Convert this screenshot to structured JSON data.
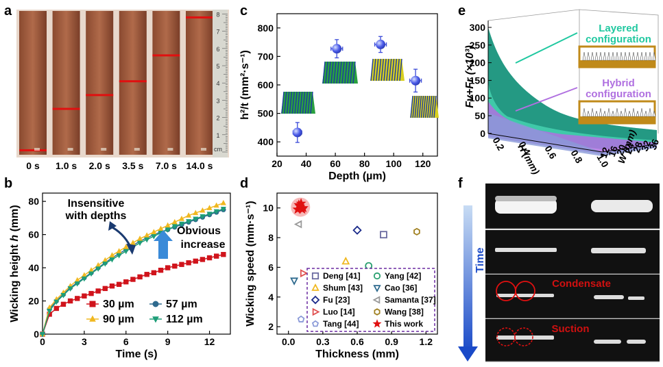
{
  "panel_labels": {
    "a": "a",
    "b": "b",
    "c": "c",
    "d": "d",
    "e": "e",
    "f": "f"
  },
  "panel_a": {
    "time_labels": [
      "0 s",
      "1.0 s",
      "2.0 s",
      "3.5 s",
      "7.0 s",
      "14.0 s"
    ],
    "ruler_marks": [
      "8",
      "7",
      "6",
      "5",
      "4",
      "3",
      "2",
      "1",
      "cm"
    ],
    "heights_cm": [
      0.1,
      2.5,
      3.3,
      4.1,
      5.6,
      7.8
    ]
  },
  "chart_data": [
    {
      "panel": "b",
      "type": "line",
      "xlabel": "Time (s)",
      "ylabel": "Wicking height h (mm)",
      "xlim": [
        0,
        13.5
      ],
      "ylim": [
        0,
        85
      ],
      "xticks": [
        "0",
        "3",
        "6",
        "9",
        "12"
      ],
      "yticks": [
        "0",
        "20",
        "40",
        "60",
        "80"
      ],
      "annotations": [
        "Insensitive with depths",
        "Obvious increase"
      ],
      "x": [
        0,
        0.5,
        1,
        1.5,
        2,
        2.5,
        3,
        3.5,
        4,
        4.5,
        5,
        5.5,
        6,
        6.5,
        7,
        7.5,
        8,
        8.5,
        9,
        9.5,
        10,
        10.5,
        11,
        11.5,
        12,
        12.5,
        13
      ],
      "series": [
        {
          "name": "30 µm",
          "color": "#d0141c",
          "marker": "square",
          "values": [
            0,
            12,
            15.5,
            18,
            20,
            21.5,
            23,
            24.5,
            26,
            27.5,
            29,
            30,
            31.5,
            33,
            34.5,
            36,
            37,
            38.5,
            40,
            41,
            42,
            43,
            44,
            45,
            46,
            47,
            48
          ]
        },
        {
          "name": "57 µm",
          "color": "#2e6a8e",
          "marker": "circle",
          "values": [
            0,
            15,
            20,
            24,
            28,
            31,
            34,
            37,
            40,
            43,
            46,
            48.5,
            51,
            53.5,
            56,
            58,
            60,
            61.5,
            63,
            64.5,
            66,
            67.5,
            69,
            70.5,
            72,
            73.5,
            75
          ]
        },
        {
          "name": "90 µm",
          "color": "#f0b820",
          "marker": "triangle",
          "values": [
            0,
            16,
            21,
            25,
            29,
            32.5,
            35.5,
            38.5,
            41.5,
            44.5,
            47.5,
            50,
            52.5,
            55,
            57.5,
            59.5,
            61.5,
            63.5,
            65.5,
            67.5,
            69.5,
            71.5,
            73,
            74.5,
            76,
            77.5,
            79
          ]
        },
        {
          "name": "112 µm",
          "color": "#1e9e78",
          "marker": "triangle-down",
          "values": [
            0,
            14,
            19.5,
            23.5,
            27.5,
            30.5,
            33.5,
            36.5,
            39.5,
            42.5,
            45,
            47.5,
            50,
            52.5,
            55,
            57,
            59,
            61,
            63,
            65,
            66.5,
            68,
            69.5,
            71,
            72.5,
            74,
            75.5
          ]
        }
      ]
    },
    {
      "panel": "c",
      "type": "scatter",
      "xlabel": "Depth (µm)",
      "ylabel": "h²/t (mm²·s⁻¹)",
      "xlim": [
        20,
        130
      ],
      "ylim": [
        350,
        850
      ],
      "xticks": [
        "20",
        "40",
        "60",
        "80",
        "100",
        "120"
      ],
      "yticks": [
        "400",
        "500",
        "600",
        "700",
        "800"
      ],
      "points": [
        {
          "x": 34,
          "y": 433,
          "xerr": 3,
          "yerr": 35
        },
        {
          "x": 61,
          "y": 727,
          "xerr": 4,
          "yerr": 32
        },
        {
          "x": 91,
          "y": 742,
          "xerr": 4,
          "yerr": 28
        },
        {
          "x": 115,
          "y": 615,
          "xerr": 4,
          "yerr": 40
        }
      ]
    },
    {
      "panel": "d",
      "type": "scatter",
      "xlabel": "Thickness (mm)",
      "ylabel": "Wicking speed (mm·s⁻¹)",
      "xlim": [
        -0.1,
        1.3
      ],
      "ylim": [
        1.5,
        11
      ],
      "xticks": [
        "0.0",
        "0.3",
        "0.6",
        "0.9",
        "1.2"
      ],
      "yticks": [
        "2",
        "4",
        "6",
        "8",
        "10"
      ],
      "series": [
        {
          "name": "Deng [41]",
          "color": "#6a6aa0",
          "marker": "square-open",
          "points": [
            [
              0.83,
              8.2
            ]
          ]
        },
        {
          "name": "Yang [42]",
          "color": "#2aa070",
          "marker": "circle-open",
          "points": [
            [
              0.7,
              6.1
            ]
          ]
        },
        {
          "name": "Shum [43]",
          "color": "#f0b820",
          "marker": "triangle-open",
          "points": [
            [
              0.5,
              6.4
            ]
          ]
        },
        {
          "name": "Cao [36]",
          "color": "#2e6a8e",
          "marker": "triangle-down-open",
          "points": [
            [
              0.05,
              5.1
            ]
          ]
        },
        {
          "name": "Fu [23]",
          "color": "#1a2a8a",
          "marker": "diamond-open",
          "points": [
            [
              0.6,
              8.5
            ]
          ]
        },
        {
          "name": "Samanta [37]",
          "color": "#999999",
          "marker": "triangle-left-open",
          "points": [
            [
              0.09,
              8.9
            ]
          ]
        },
        {
          "name": "Luo [14]",
          "color": "#e05050",
          "marker": "triangle-right-open",
          "points": [
            [
              0.13,
              5.6
            ]
          ]
        },
        {
          "name": "Wang [38]",
          "color": "#a08020",
          "marker": "hexagon-open",
          "points": [
            [
              1.12,
              8.4
            ]
          ]
        },
        {
          "name": "Tang [44]",
          "color": "#8a9ad8",
          "marker": "pentagon-open",
          "points": [
            [
              0.11,
              2.5
            ]
          ]
        },
        {
          "name": "This work",
          "color": "#e01010",
          "marker": "star",
          "points": [
            [
              0.08,
              9.9
            ],
            [
              0.1,
              10.1
            ],
            [
              0.12,
              9.9
            ],
            [
              0.11,
              10.3
            ],
            [
              0.09,
              10.2
            ],
            [
              0.13,
              10.0
            ]
          ]
        }
      ]
    },
    {
      "panel": "e",
      "type": "area",
      "zlabel": "Fv+Fr (×10³)",
      "xlabel": "H (mm)",
      "ylabel": "W (mm)",
      "zticks": [
        "300",
        "250",
        "200",
        "150",
        "100",
        "50",
        "0"
      ],
      "hticks": [
        "0.2",
        "0.4",
        "0.6",
        "0.8",
        "1.0"
      ],
      "wticks": [
        "12",
        "16",
        "20",
        "24",
        "28",
        "32",
        "36"
      ],
      "series": [
        {
          "name": "Layered configuration",
          "color": "#20c8a0"
        },
        {
          "name": "Hybrid configuration",
          "color": "#b070e0"
        }
      ]
    }
  ],
  "panel_f": {
    "time_label": "Time",
    "annotations": [
      "Condensate",
      "Suction"
    ]
  }
}
